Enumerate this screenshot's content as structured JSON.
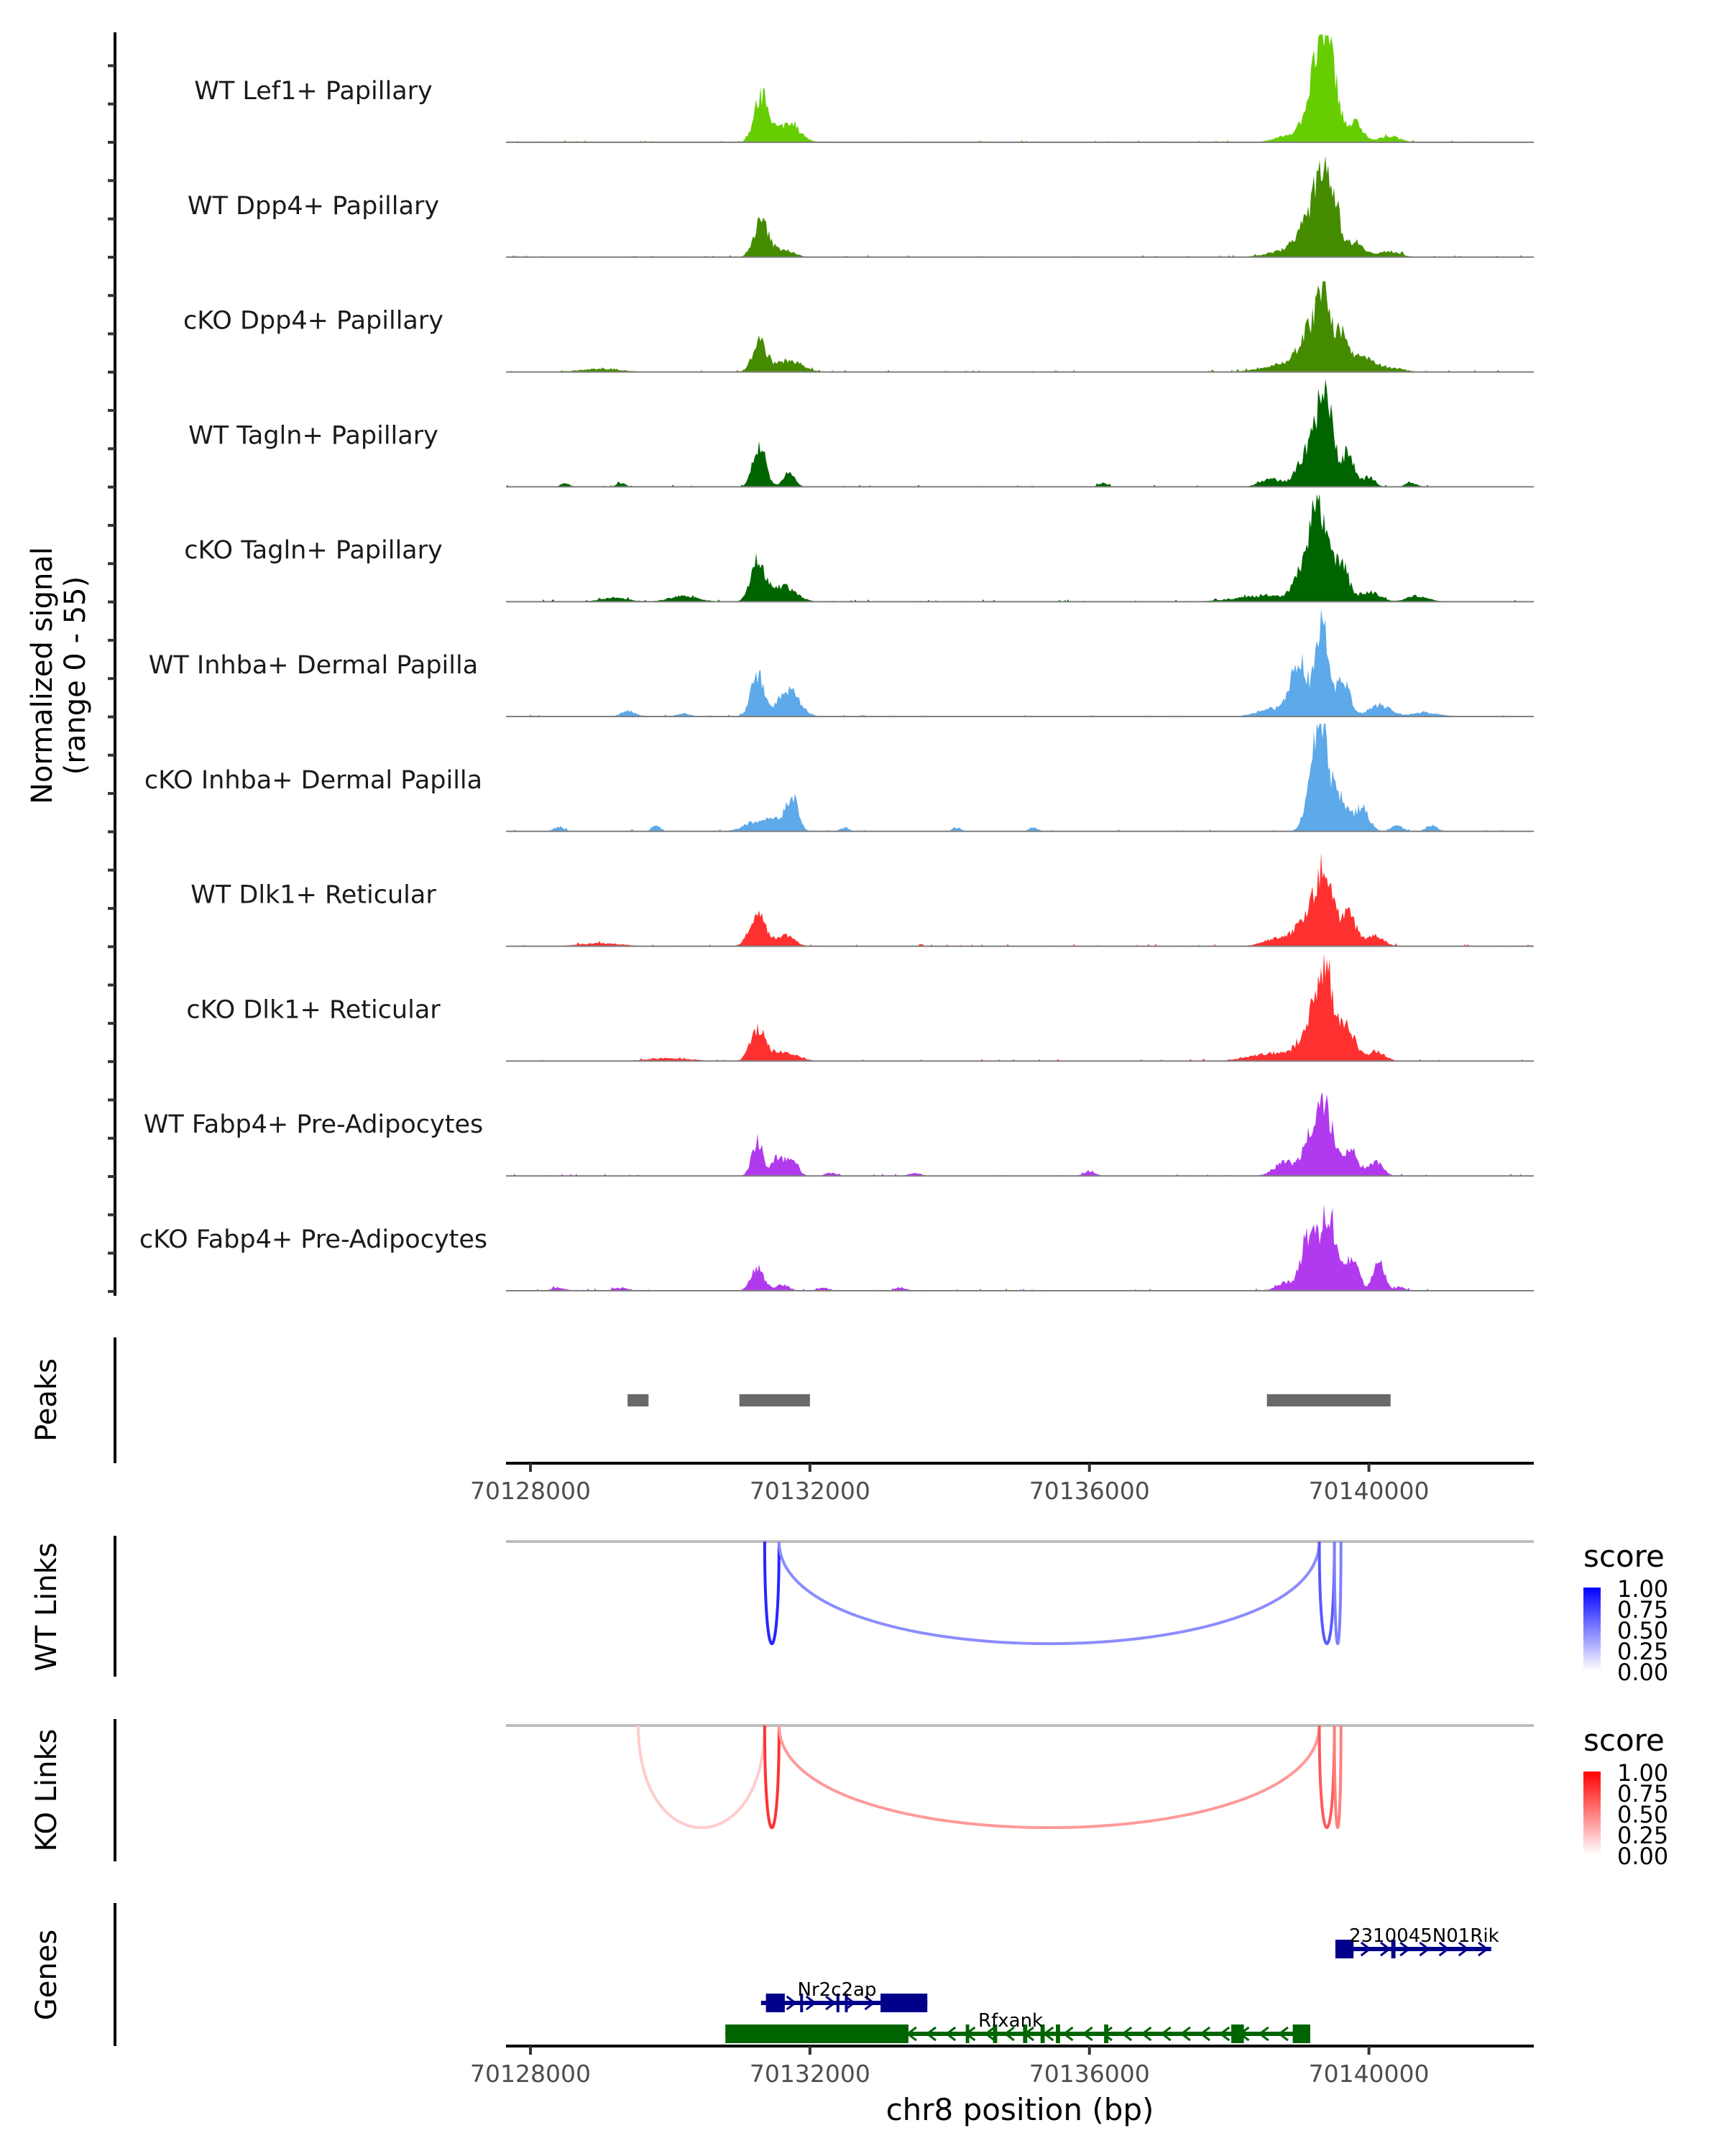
{
  "chart_data": {
    "type": "area",
    "title": "",
    "region": {
      "chrom": "chr8",
      "start": 70127650,
      "end": 70142360
    },
    "xlabel": "chr8 position (bp)",
    "xticks": [
      70128000,
      70132000,
      70136000,
      70140000
    ],
    "xtick_labels": [
      "70128000",
      "70132000",
      "70136000",
      "70140000"
    ],
    "coverage": {
      "ylabel_line1": "Normalized signal",
      "ylabel_line2": "(range 0 - 55)",
      "ylim": [
        0,
        55
      ],
      "tracks": [
        {
          "name": "WT Lef1+ Papillary",
          "color": "#66CD00",
          "peaks": [
            [
              70131280,
              20,
              90
            ],
            [
              70131400,
              8,
              80
            ],
            [
              70131700,
              10,
              150
            ],
            [
              70139200,
              22,
              120
            ],
            [
              70139340,
              37,
              100
            ],
            [
              70139500,
              27,
              90
            ],
            [
              70139800,
              10,
              110
            ],
            [
              70138900,
              4,
              200
            ],
            [
              70140300,
              3,
              150
            ]
          ]
        },
        {
          "name": "WT Dpp4+ Papillary",
          "color": "#458B00",
          "peaks": [
            [
              70131300,
              18,
              100
            ],
            [
              70131600,
              4,
              150
            ],
            [
              70139100,
              14,
              150
            ],
            [
              70139330,
              40,
              110
            ],
            [
              70139500,
              22,
              90
            ],
            [
              70139800,
              8,
              130
            ],
            [
              70138800,
              3,
              250
            ],
            [
              70140300,
              3,
              150
            ]
          ]
        },
        {
          "name": "cKO Dpp4+ Papillary",
          "color": "#458B00",
          "peaks": [
            [
              70131280,
              15,
              100
            ],
            [
              70131700,
              6,
              180
            ],
            [
              70129000,
              1.5,
              300
            ],
            [
              70139150,
              18,
              150
            ],
            [
              70139350,
              32,
              100
            ],
            [
              70139600,
              18,
              100
            ],
            [
              70139900,
              7,
              150
            ],
            [
              70138800,
              4,
              300
            ],
            [
              70140300,
              2,
              200
            ]
          ]
        },
        {
          "name": "WT Tagln+ Papillary",
          "color": "#006400",
          "peaks": [
            [
              70131280,
              22,
              90
            ],
            [
              70131700,
              7,
              80
            ],
            [
              70128500,
              2,
              60
            ],
            [
              70129300,
              2,
              60
            ],
            [
              70136200,
              2,
              60
            ],
            [
              70139150,
              20,
              150
            ],
            [
              70139380,
              48,
              100
            ],
            [
              70139700,
              18,
              90
            ],
            [
              70140000,
              5,
              80
            ],
            [
              70138600,
              4,
              150
            ],
            [
              70140600,
              2,
              80
            ]
          ]
        },
        {
          "name": "cKO Tagln+ Papillary",
          "color": "#006400",
          "peaks": [
            [
              70131250,
              20,
              100
            ],
            [
              70131600,
              8,
              180
            ],
            [
              70130200,
              3,
              200
            ],
            [
              70129200,
              2,
              200
            ],
            [
              70139100,
              18,
              140
            ],
            [
              70139300,
              45,
              110
            ],
            [
              70139600,
              20,
              100
            ],
            [
              70140000,
              5,
              150
            ],
            [
              70140700,
              3,
              150
            ],
            [
              70138500,
              3,
              400
            ]
          ]
        },
        {
          "name": "WT Inhba+ Dermal Papilla",
          "color": "#5DA9E9",
          "peaks": [
            [
              70131250,
              22,
              90
            ],
            [
              70131700,
              14,
              150
            ],
            [
              70129400,
              3,
              100
            ],
            [
              70130200,
              1.5,
              100
            ],
            [
              70139000,
              28,
              120
            ],
            [
              70139330,
              45,
              90
            ],
            [
              70139630,
              20,
              90
            ],
            [
              70140150,
              6,
              150
            ],
            [
              70138600,
              4,
              200
            ],
            [
              70140800,
              2,
              200
            ]
          ]
        },
        {
          "name": "cKO Inhba+ Dermal Papilla",
          "color": "#5DA9E9",
          "peaks": [
            [
              70131150,
              3,
              150
            ],
            [
              70131500,
              6,
              200
            ],
            [
              70131750,
              16,
              80
            ],
            [
              70128400,
              2,
              80
            ],
            [
              70129800,
              3,
              60
            ],
            [
              70132500,
              2,
              60
            ],
            [
              70134100,
              2,
              60
            ],
            [
              70135200,
              2,
              60
            ],
            [
              70139200,
              28,
              100
            ],
            [
              70139330,
              45,
              80
            ],
            [
              70139550,
              20,
              120
            ],
            [
              70139900,
              12,
              100
            ],
            [
              70140400,
              3,
              80
            ],
            [
              70140900,
              3,
              80
            ]
          ]
        },
        {
          "name": "WT Dlk1+ Reticular",
          "color": "#FF3030",
          "peaks": [
            [
              70131250,
              18,
              110
            ],
            [
              70131650,
              6,
              120
            ],
            [
              70129000,
              1.5,
              300
            ],
            [
              70139100,
              12,
              150
            ],
            [
              70139350,
              36,
              120
            ],
            [
              70139700,
              16,
              120
            ],
            [
              70140100,
              5,
              120
            ],
            [
              70138700,
              4,
              200
            ]
          ]
        },
        {
          "name": "cKO Dlk1+ Reticular",
          "color": "#FF3030",
          "peaks": [
            [
              70131250,
              16,
              100
            ],
            [
              70131600,
              5,
              200
            ],
            [
              70130000,
              1.5,
              300
            ],
            [
              70139150,
              16,
              150
            ],
            [
              70139380,
              44,
              120
            ],
            [
              70139700,
              16,
              110
            ],
            [
              70140100,
              5,
              120
            ],
            [
              70138600,
              4,
              300
            ]
          ]
        },
        {
          "name": "WT Fabp4+ Pre-Adipocytes",
          "color": "#B23AEE",
          "peaks": [
            [
              70131250,
              18,
              80
            ],
            [
              70131550,
              10,
              80
            ],
            [
              70131750,
              8,
              80
            ],
            [
              70132300,
              1.5,
              80
            ],
            [
              70133500,
              1.5,
              80
            ],
            [
              70136000,
              2,
              80
            ],
            [
              70138800,
              7,
              150
            ],
            [
              70139200,
              22,
              120
            ],
            [
              70139400,
              28,
              120
            ],
            [
              70139750,
              12,
              100
            ],
            [
              70140100,
              7,
              100
            ]
          ]
        },
        {
          "name": "cKO Fabp4+ Pre-Adipocytes",
          "color": "#B23AEE",
          "peaks": [
            [
              70131250,
              12,
              90
            ],
            [
              70131600,
              3,
              100
            ],
            [
              70128400,
              1.5,
              100
            ],
            [
              70129300,
              1.5,
              100
            ],
            [
              70132200,
              1.5,
              80
            ],
            [
              70133300,
              1.5,
              80
            ],
            [
              70138800,
              4,
              120
            ],
            [
              70139150,
              30,
              110
            ],
            [
              70139420,
              40,
              100
            ],
            [
              70139750,
              17,
              100
            ],
            [
              70140150,
              15,
              80
            ],
            [
              70140450,
              2,
              60
            ]
          ]
        }
      ]
    },
    "peaks_track": {
      "label": "Peaks",
      "color": "#696969",
      "regions": [
        [
          70129390,
          70129690
        ],
        [
          70130990,
          70132000
        ],
        [
          70138540,
          70140310
        ]
      ]
    },
    "links": [
      {
        "label": "WT Links",
        "legend_title": "score",
        "color_high": "#0000FF",
        "legend_ticks": [
          "1.00",
          "0.75",
          "0.50",
          "0.25",
          "0.00"
        ],
        "arcs": [
          {
            "start": 70131352,
            "end": 70131558,
            "score": 0.85
          },
          {
            "start": 70131558,
            "end": 70139290,
            "score": 0.45
          },
          {
            "start": 70139290,
            "end": 70139506,
            "score": 0.65
          },
          {
            "start": 70139506,
            "end": 70139600,
            "score": 0.5
          }
        ]
      },
      {
        "label": "KO Links",
        "legend_title": "score",
        "color_high": "#FF0000",
        "legend_ticks": [
          "1.00",
          "0.75",
          "0.50",
          "0.25",
          "0.00"
        ],
        "arcs": [
          {
            "start": 70129543,
            "end": 70131352,
            "score": 0.2
          },
          {
            "start": 70131352,
            "end": 70131558,
            "score": 0.8
          },
          {
            "start": 70131558,
            "end": 70139290,
            "score": 0.4
          },
          {
            "start": 70139290,
            "end": 70139506,
            "score": 0.65
          },
          {
            "start": 70139506,
            "end": 70139600,
            "score": 0.5
          }
        ]
      }
    ],
    "genes": {
      "label": "Genes",
      "items": [
        {
          "name": "2310045N01Rik",
          "strand": "+",
          "color": "#00008B",
          "row": 0,
          "start": 70139520,
          "end": 70141750,
          "exons": [
            [
              70139520,
              70139780
            ],
            [
              70140320,
              70140380
            ]
          ]
        },
        {
          "name": "Nr2c2ap",
          "strand": "+",
          "color": "#00008B",
          "row": 1,
          "start": 70131300,
          "end": 70133680,
          "exons": [
            [
              70131370,
              70131640
            ],
            [
              70131860,
              70131900
            ],
            [
              70132380,
              70132420
            ],
            [
              70132500,
              70132540
            ],
            [
              70133010,
              70133680
            ]
          ]
        },
        {
          "name": "Rfxank",
          "strand": "-",
          "color": "#006400",
          "row": 2,
          "start": 70130790,
          "end": 70139160,
          "exons": [
            [
              70130790,
              70133410
            ],
            [
              70134230,
              70134280
            ],
            [
              70134620,
              70134680
            ],
            [
              70135050,
              70135110
            ],
            [
              70135300,
              70135360
            ],
            [
              70135520,
              70135580
            ],
            [
              70136210,
              70136270
            ],
            [
              70138030,
              70138210
            ],
            [
              70138910,
              70139160
            ]
          ]
        }
      ]
    }
  }
}
